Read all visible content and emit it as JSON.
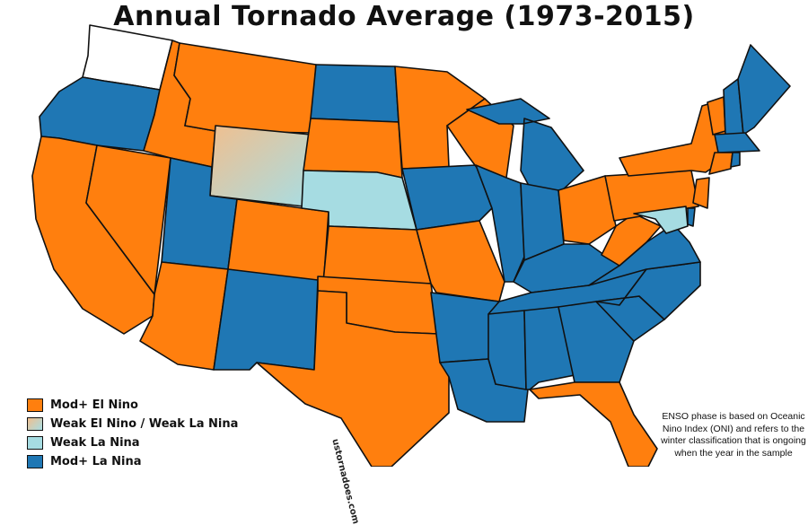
{
  "title": "Annual Tornado Average (1973-2015)",
  "colors": {
    "mod_el_nino": "#ff7f0e",
    "weak_mixed_start": "#f0bf8f",
    "weak_mixed_end": "#a8dde3",
    "weak_la_nina": "#a6dce2",
    "mod_la_nina": "#1f77b4",
    "no_data": "#ffffff"
  },
  "legend": [
    {
      "label": "Mod+ El Nino",
      "color": "#ff7f0e"
    },
    {
      "label": "Weak El Nino / Weak La Nina",
      "color": "gradient"
    },
    {
      "label": "Weak La Nina",
      "color": "#a6dce2"
    },
    {
      "label": "Mod+ La Nina",
      "color": "#1f77b4"
    }
  ],
  "note": "ENSO phase is based on Oceanic Nino Index (ONI) and refers to the winter classification that is ongoing when the year in the sample",
  "watermark": "ustornadoes.com",
  "states": [
    {
      "id": "WA",
      "phase": "none"
    },
    {
      "id": "OR",
      "phase": "la"
    },
    {
      "id": "CA",
      "phase": "el"
    },
    {
      "id": "NV",
      "phase": "el"
    },
    {
      "id": "ID",
      "phase": "el"
    },
    {
      "id": "MT",
      "phase": "el"
    },
    {
      "id": "WY",
      "phase": "mixed"
    },
    {
      "id": "UT",
      "phase": "la"
    },
    {
      "id": "AZ",
      "phase": "el"
    },
    {
      "id": "CO",
      "phase": "el"
    },
    {
      "id": "NM",
      "phase": "la"
    },
    {
      "id": "ND",
      "phase": "la"
    },
    {
      "id": "SD",
      "phase": "el"
    },
    {
      "id": "NE",
      "phase": "weakla"
    },
    {
      "id": "KS",
      "phase": "el"
    },
    {
      "id": "OK",
      "phase": "el"
    },
    {
      "id": "TX",
      "phase": "el"
    },
    {
      "id": "MN",
      "phase": "el"
    },
    {
      "id": "IA",
      "phase": "la"
    },
    {
      "id": "MO",
      "phase": "el"
    },
    {
      "id": "AR",
      "phase": "la"
    },
    {
      "id": "LA",
      "phase": "la"
    },
    {
      "id": "WI",
      "phase": "el"
    },
    {
      "id": "IL",
      "phase": "la"
    },
    {
      "id": "MI",
      "phase": "la"
    },
    {
      "id": "IN",
      "phase": "la"
    },
    {
      "id": "OH",
      "phase": "el"
    },
    {
      "id": "KY",
      "phase": "la"
    },
    {
      "id": "TN",
      "phase": "la"
    },
    {
      "id": "MS",
      "phase": "la"
    },
    {
      "id": "AL",
      "phase": "la"
    },
    {
      "id": "GA",
      "phase": "la"
    },
    {
      "id": "FL",
      "phase": "el"
    },
    {
      "id": "SC",
      "phase": "la"
    },
    {
      "id": "NC",
      "phase": "la"
    },
    {
      "id": "VA",
      "phase": "la"
    },
    {
      "id": "WV",
      "phase": "el"
    },
    {
      "id": "PA",
      "phase": "el"
    },
    {
      "id": "NY",
      "phase": "el"
    },
    {
      "id": "VT",
      "phase": "el"
    },
    {
      "id": "NH",
      "phase": "la"
    },
    {
      "id": "ME",
      "phase": "la"
    },
    {
      "id": "MA",
      "phase": "la"
    },
    {
      "id": "CT",
      "phase": "el"
    },
    {
      "id": "RI",
      "phase": "la"
    },
    {
      "id": "NJ",
      "phase": "el"
    },
    {
      "id": "DE",
      "phase": "la"
    },
    {
      "id": "MD",
      "phase": "weakla"
    }
  ]
}
